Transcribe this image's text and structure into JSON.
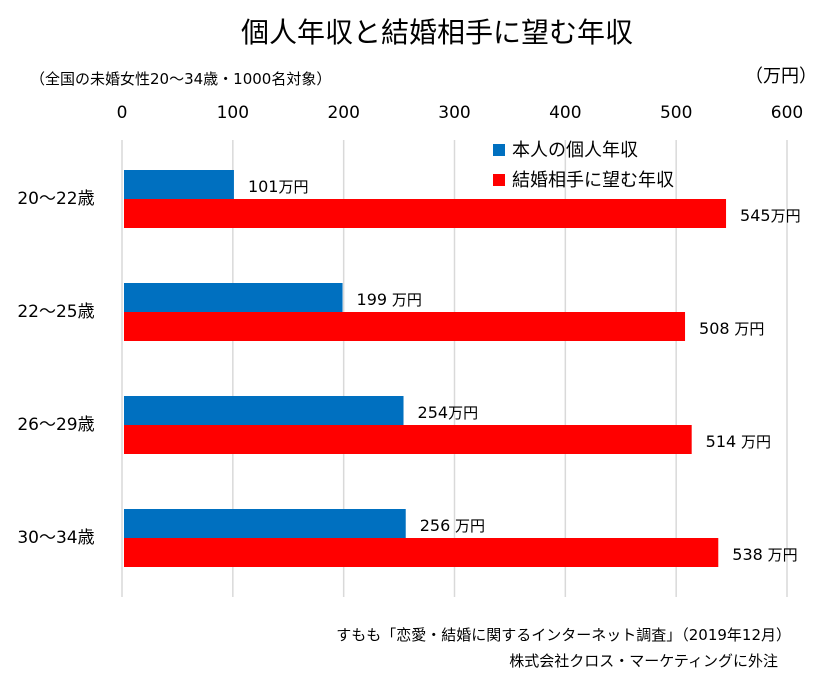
{
  "chart_data": {
    "type": "bar",
    "orientation": "horizontal",
    "title": "個人年収と結婚相手に望む年収",
    "subtitle": "（全国の未婚女性20〜34歳・1000名対象）",
    "unit_label": "（万円）",
    "xlim": [
      0,
      600
    ],
    "x_ticks": [
      "0",
      "100",
      "200",
      "300",
      "400",
      "500",
      "600"
    ],
    "tick_values": [
      0,
      100,
      200,
      300,
      400,
      500,
      600
    ],
    "grid": "vertical",
    "legend_position": "top-right",
    "categories": [
      "20〜22歳",
      "22〜25歳",
      "26〜29歳",
      "30〜34歳"
    ],
    "series": [
      {
        "name": "本人の個人年収",
        "color": "#0070C0",
        "values": [
          101,
          199,
          254,
          256
        ],
        "value_labels": [
          "101",
          "199",
          "254",
          "256"
        ],
        "unit_labels": [
          "万円",
          " 万円",
          "万円",
          " 万円"
        ]
      },
      {
        "name": "結婚相手に望む年収",
        "color": "#FF0000",
        "values": [
          545,
          508,
          514,
          538
        ],
        "value_labels": [
          "545",
          "508",
          "514",
          "538"
        ],
        "unit_labels": [
          "万円",
          " 万円",
          " 万円",
          " 万円"
        ]
      }
    ],
    "source_lines": [
      "すもも「恋愛・結婚に関するインターネット調査」（2019年12月）",
      "株式会社クロス・マーケティングに外注"
    ]
  }
}
